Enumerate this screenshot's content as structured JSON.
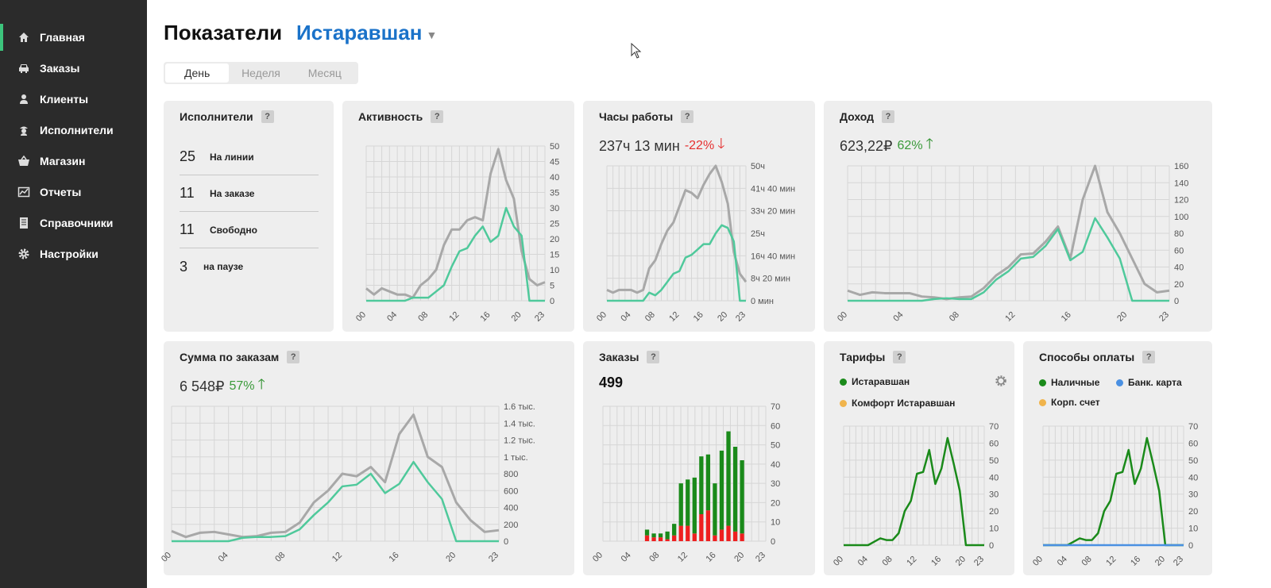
{
  "sidebar": {
    "items": [
      {
        "label": "Главная",
        "icon": "home-icon",
        "active": true
      },
      {
        "label": "Заказы",
        "icon": "car-icon"
      },
      {
        "label": "Клиенты",
        "icon": "user-icon"
      },
      {
        "label": "Исполнители",
        "icon": "driver-icon"
      },
      {
        "label": "Магазин",
        "icon": "basket-icon"
      },
      {
        "label": "Отчеты",
        "icon": "chart-icon"
      },
      {
        "label": "Справочники",
        "icon": "book-icon"
      },
      {
        "label": "Настройки",
        "icon": "gear-icon"
      }
    ]
  },
  "header": {
    "title": "Показатели",
    "city": "Истаравшан"
  },
  "period_tabs": [
    {
      "label": "День",
      "active": true
    },
    {
      "label": "Неделя"
    },
    {
      "label": "Месяц"
    }
  ],
  "help_label": "?",
  "executors": {
    "title": "Исполнители",
    "rows": [
      {
        "count": "25",
        "label": "На линии"
      },
      {
        "count": "11",
        "label": "На заказе"
      },
      {
        "count": "11",
        "label": "Свободно"
      },
      {
        "count": "3",
        "label": "на паузе"
      }
    ]
  },
  "activity": {
    "title": "Активность"
  },
  "work_hours": {
    "title": "Часы работы",
    "value": "237ч 13 мин",
    "delta": "-22%",
    "trend": "down"
  },
  "income": {
    "title": "Доход",
    "value": "623,22₽",
    "delta": "62%",
    "trend": "up"
  },
  "order_sum": {
    "title": "Сумма по заказам",
    "value": "6 548₽",
    "delta": "57%",
    "trend": "up"
  },
  "orders": {
    "title": "Заказы",
    "value": "499"
  },
  "tariffs": {
    "title": "Тарифы",
    "legend": [
      {
        "label": "Истаравшан",
        "color": "#1a8a1a"
      },
      {
        "label": "Комфорт Истаравшан",
        "color": "#f0b44c"
      }
    ]
  },
  "payments": {
    "title": "Способы оплаты",
    "legend": [
      {
        "label": "Наличные",
        "color": "#1a8a1a"
      },
      {
        "label": "Банк. карта",
        "color": "#4a90e2"
      },
      {
        "label": "Корп. счет",
        "color": "#f0b44c"
      }
    ]
  },
  "colors": {
    "accent": "#1a72c9",
    "teal": "#4fc99b",
    "gray_line": "#a8a8a8",
    "green": "#1a8a1a",
    "red": "#ee2020",
    "blue": "#4a90e2"
  },
  "chart_data": [
    {
      "id": "activity",
      "type": "line",
      "x_ticks": [
        "00",
        "04",
        "08",
        "12",
        "16",
        "20",
        "23"
      ],
      "ylim": [
        0,
        50
      ],
      "y_ticks": [
        "0",
        "5",
        "10",
        "15",
        "20",
        "25",
        "30",
        "35",
        "40",
        "45",
        "50"
      ],
      "series": [
        {
          "values": [
            4,
            2,
            4,
            3,
            2,
            2,
            1,
            5,
            7,
            10,
            18,
            23,
            23,
            26,
            27,
            26,
            41,
            49,
            39,
            33,
            16,
            7,
            5,
            6
          ],
          "color": "#a8a8a8"
        },
        {
          "values": [
            0,
            0,
            0,
            0,
            0,
            0,
            1,
            1,
            1,
            3,
            5,
            11,
            16,
            17,
            21,
            24,
            19,
            21,
            30,
            24,
            21,
            0,
            0,
            0
          ],
          "color": "#4fc99b"
        }
      ]
    },
    {
      "id": "work_hours",
      "type": "line",
      "x_ticks": [
        "00",
        "04",
        "08",
        "12",
        "16",
        "20",
        "23"
      ],
      "ylim": [
        0,
        50
      ],
      "y_ticks": [
        "0 мин",
        "8ч 20 мин",
        "16ч 40 мин",
        "25ч",
        "33ч 20 мин",
        "41ч 40 мин",
        "50ч"
      ],
      "series": [
        {
          "values": [
            4,
            3,
            4,
            4,
            4,
            3,
            4,
            12,
            15,
            21,
            26,
            29,
            35,
            41,
            40,
            38,
            43,
            47,
            50,
            44,
            36,
            18,
            10,
            7
          ],
          "color": "#a8a8a8"
        },
        {
          "values": [
            0,
            0,
            0,
            0,
            0,
            0,
            0,
            3,
            2,
            4,
            7,
            10,
            11,
            16,
            17,
            19,
            21,
            21,
            25,
            28,
            27,
            22,
            0,
            0
          ],
          "color": "#4fc99b"
        }
      ]
    },
    {
      "id": "income",
      "type": "line",
      "x_ticks": [
        "00",
        "04",
        "08",
        "12",
        "16",
        "20",
        "23"
      ],
      "ylim": [
        0,
        160
      ],
      "y_ticks": [
        "0",
        "20",
        "40",
        "60",
        "80",
        "100",
        "120",
        "140",
        "160"
      ],
      "series": [
        {
          "values": [
            12,
            7,
            10,
            9,
            9,
            9,
            5,
            4,
            2,
            4,
            5,
            15,
            30,
            40,
            55,
            56,
            70,
            88,
            50,
            120,
            160,
            105,
            80,
            50,
            20,
            10,
            12
          ],
          "color": "#a8a8a8"
        },
        {
          "values": [
            0,
            0,
            0,
            0,
            0,
            0,
            0,
            2,
            3,
            2,
            2,
            10,
            25,
            35,
            50,
            52,
            65,
            85,
            48,
            58,
            98,
            75,
            50,
            0,
            0,
            0,
            0
          ],
          "color": "#4fc99b"
        }
      ]
    },
    {
      "id": "order_sum",
      "type": "line",
      "x_ticks": [
        "00",
        "04",
        "08",
        "12",
        "16",
        "20",
        "23"
      ],
      "ylim": [
        0,
        1600
      ],
      "y_ticks": [
        "0",
        "200",
        "400",
        "600",
        "800",
        "1 тыс.",
        "1.2 тыс.",
        "1.4 тыс.",
        "1.6 тыс."
      ],
      "series": [
        {
          "values": [
            120,
            50,
            100,
            110,
            80,
            50,
            60,
            100,
            110,
            220,
            460,
            600,
            800,
            770,
            880,
            700,
            1270,
            1500,
            1000,
            880,
            460,
            250,
            110,
            130
          ],
          "color": "#a8a8a8"
        },
        {
          "values": [
            0,
            0,
            0,
            0,
            0,
            40,
            50,
            50,
            60,
            140,
            310,
            460,
            650,
            670,
            800,
            570,
            680,
            940,
            700,
            500,
            0,
            0,
            0,
            0
          ],
          "color": "#4fc99b"
        }
      ]
    },
    {
      "id": "orders",
      "type": "bar",
      "x_ticks": [
        "00",
        "04",
        "08",
        "12",
        "16",
        "20",
        "23"
      ],
      "ylim": [
        0,
        70
      ],
      "y_ticks": [
        "0",
        "10",
        "20",
        "30",
        "40",
        "50",
        "60",
        "70"
      ],
      "series": [
        {
          "name": "green",
          "values": [
            0,
            0,
            0,
            0,
            0,
            0,
            3,
            2,
            2,
            4,
            6,
            22,
            24,
            29,
            30,
            29,
            27,
            41,
            49,
            44,
            38,
            0,
            0,
            0
          ],
          "color": "#1a8a1a"
        },
        {
          "name": "red",
          "values": [
            0,
            0,
            0,
            0,
            0,
            0,
            3,
            2,
            2,
            1,
            3,
            8,
            8,
            4,
            14,
            16,
            3,
            6,
            8,
            5,
            4,
            0,
            0,
            0
          ],
          "color": "#ee2020"
        }
      ]
    },
    {
      "id": "tariffs",
      "type": "line",
      "x_ticks": [
        "00",
        "04",
        "08",
        "12",
        "16",
        "20",
        "23"
      ],
      "ylim": [
        0,
        70
      ],
      "y_ticks": [
        "0",
        "10",
        "20",
        "30",
        "40",
        "50",
        "60",
        "70"
      ],
      "series": [
        {
          "values": [
            0,
            0,
            0,
            0,
            0,
            2,
            4,
            3,
            3,
            7,
            20,
            26,
            42,
            43,
            56,
            36,
            45,
            63,
            48,
            32,
            0,
            0,
            0,
            0
          ],
          "color": "#1a8a1a"
        }
      ]
    },
    {
      "id": "payments",
      "type": "line",
      "x_ticks": [
        "00",
        "04",
        "08",
        "12",
        "16",
        "20",
        "23"
      ],
      "ylim": [
        0,
        70
      ],
      "y_ticks": [
        "0",
        "10",
        "20",
        "30",
        "40",
        "50",
        "60",
        "70"
      ],
      "series": [
        {
          "values": [
            0,
            0,
            0,
            0,
            0,
            2,
            4,
            3,
            3,
            7,
            20,
            26,
            42,
            43,
            56,
            36,
            45,
            63,
            48,
            32,
            0,
            0,
            0,
            0
          ],
          "color": "#1a8a1a"
        },
        {
          "values": [
            0,
            0,
            0,
            0,
            0,
            0,
            0,
            0,
            0,
            0,
            0,
            0,
            0,
            0,
            0,
            0,
            0,
            0,
            0,
            0,
            0,
            0,
            0,
            0
          ],
          "color": "#4a90e2"
        }
      ]
    }
  ]
}
